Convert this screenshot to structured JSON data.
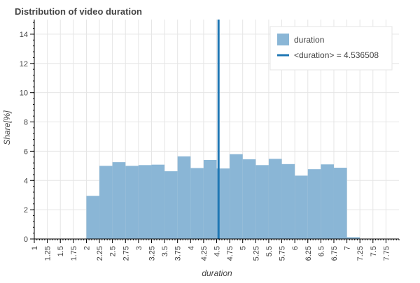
{
  "chart_data": {
    "type": "bar",
    "title": "Distribution of video duration",
    "xlabel": "duration",
    "ylabel": "Share[%]",
    "xlim": [
      1,
      8
    ],
    "ylim": [
      0,
      15
    ],
    "grid": true,
    "legend_position": "top-right",
    "x_ticks": [
      1,
      1.25,
      1.5,
      1.75,
      2,
      2.25,
      2.5,
      2.75,
      3,
      3.25,
      3.5,
      3.75,
      4,
      4.25,
      4.5,
      4.75,
      5,
      5.25,
      5.5,
      5.75,
      6,
      6.25,
      6.5,
      6.75,
      7,
      7.25,
      7.5,
      7.75
    ],
    "y_ticks": [
      0,
      2,
      4,
      6,
      8,
      10,
      12,
      14
    ],
    "series": [
      {
        "name": "duration",
        "type": "histogram",
        "color": "#8ab6d6",
        "bins": [
          {
            "x0": 2.0,
            "x1": 2.25,
            "value": 2.95
          },
          {
            "x0": 2.25,
            "x1": 2.5,
            "value": 5.0
          },
          {
            "x0": 2.5,
            "x1": 2.75,
            "value": 5.25
          },
          {
            "x0": 2.75,
            "x1": 3.0,
            "value": 5.0
          },
          {
            "x0": 3.0,
            "x1": 3.25,
            "value": 5.05
          },
          {
            "x0": 3.25,
            "x1": 3.5,
            "value": 5.08
          },
          {
            "x0": 3.5,
            "x1": 3.75,
            "value": 4.63
          },
          {
            "x0": 3.75,
            "x1": 4.0,
            "value": 5.65
          },
          {
            "x0": 4.0,
            "x1": 4.25,
            "value": 4.85
          },
          {
            "x0": 4.25,
            "x1": 4.5,
            "value": 5.4
          },
          {
            "x0": 4.5,
            "x1": 4.75,
            "value": 4.82
          },
          {
            "x0": 4.75,
            "x1": 5.0,
            "value": 5.8
          },
          {
            "x0": 5.0,
            "x1": 5.25,
            "value": 5.45
          },
          {
            "x0": 5.25,
            "x1": 5.5,
            "value": 5.05
          },
          {
            "x0": 5.5,
            "x1": 5.75,
            "value": 5.48
          },
          {
            "x0": 5.75,
            "x1": 6.0,
            "value": 5.12
          },
          {
            "x0": 6.0,
            "x1": 6.25,
            "value": 4.33
          },
          {
            "x0": 6.25,
            "x1": 6.5,
            "value": 4.77
          },
          {
            "x0": 6.5,
            "x1": 6.75,
            "value": 5.1
          },
          {
            "x0": 6.75,
            "x1": 7.0,
            "value": 4.87
          },
          {
            "x0": 7.0,
            "x1": 7.25,
            "value": 0.12
          }
        ]
      },
      {
        "name": "<duration> = 4.536508",
        "type": "vline",
        "color": "#1f77b4",
        "x": 4.536508
      }
    ]
  }
}
